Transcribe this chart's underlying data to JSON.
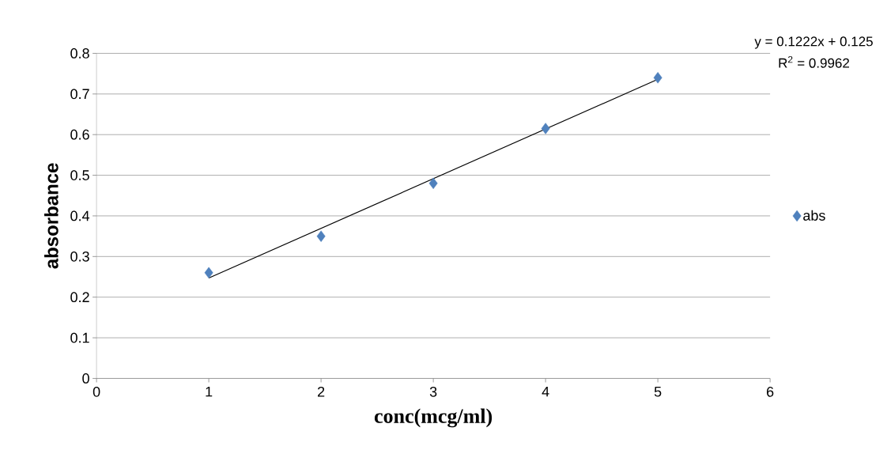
{
  "chart_data": {
    "type": "scatter",
    "xlabel": "conc(mcg/ml)",
    "ylabel": "absorbance",
    "annotations": [
      "y = 0.1222x + 0.125",
      "R$^{2}$ = 0.9962"
    ],
    "series": [
      {
        "name": "abs",
        "color": "#4f81bd",
        "x": [
          1,
          2,
          3,
          4,
          5
        ],
        "values": [
          0.26,
          0.35,
          0.48,
          0.615,
          0.74
        ]
      },
      {
        "type": "line",
        "marker": "none",
        "color": "#000000",
        "x": [
          1,
          5
        ],
        "values": [
          0.247,
          0.736
        ]
      }
    ],
    "xlim": [
      0,
      6
    ],
    "ylim": [
      0,
      0.8
    ],
    "xticks": [
      0,
      1,
      2,
      3,
      4,
      5,
      6
    ],
    "yticks": [
      0,
      0.1,
      0.2,
      0.3,
      0.4,
      0.5,
      0.6,
      0.7,
      0.8
    ],
    "grid": "y",
    "legend": "right",
    "marker": "diamond"
  }
}
